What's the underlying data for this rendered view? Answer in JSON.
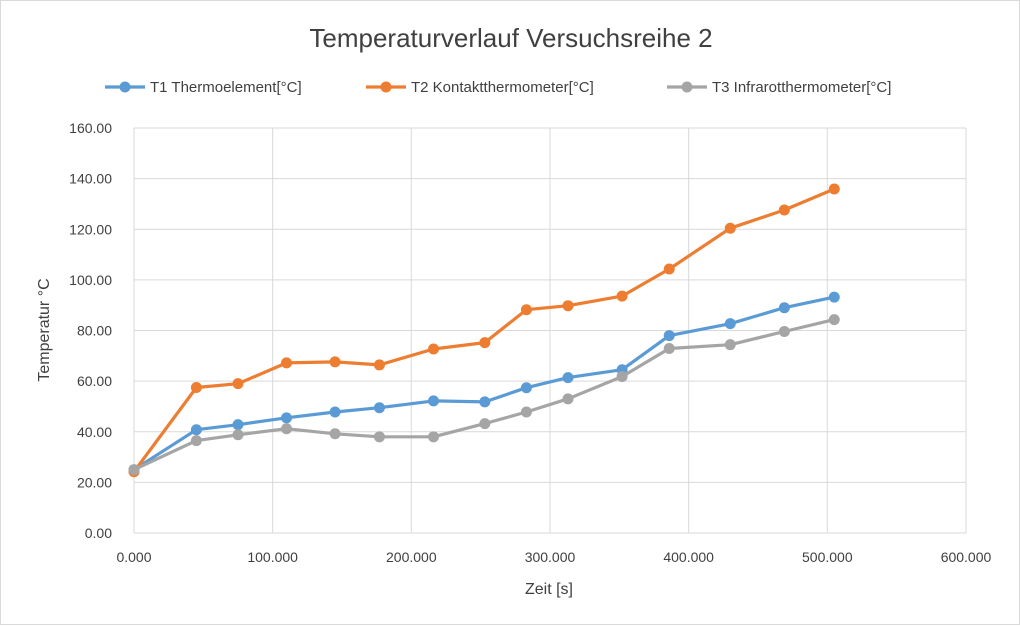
{
  "chart_data": {
    "type": "line",
    "title": "Temperaturverlauf Versuchsreihe 2",
    "xlabel": "Zeit [s]",
    "ylabel": "Temperatur °C",
    "xlim": [
      0,
      600
    ],
    "ylim": [
      0,
      160
    ],
    "x_ticks": [
      "0.000",
      "100.000",
      "200.000",
      "300.000",
      "400.000",
      "500.000",
      "600.000"
    ],
    "y_ticks": [
      "0.00",
      "20.00",
      "40.00",
      "60.00",
      "80.00",
      "100.00",
      "120.00",
      "140.00",
      "160.00"
    ],
    "grid": true,
    "legend_position": "top",
    "x": [
      0,
      45,
      75,
      110,
      145,
      177,
      216,
      253,
      283,
      313,
      352,
      386,
      430,
      469,
      505
    ],
    "series": [
      {
        "name": "T1 Thermoelement[°C]",
        "color": "#5b9bd5",
        "values": [
          25.0,
          40.8,
          42.8,
          45.5,
          47.8,
          49.5,
          52.2,
          51.8,
          57.4,
          61.4,
          64.5,
          78.0,
          82.7,
          89.0,
          93.2
        ]
      },
      {
        "name": "T2 Kontaktthermometer[°C]",
        "color": "#ed7d31",
        "values": [
          24.2,
          57.5,
          59.0,
          67.2,
          67.6,
          66.4,
          72.7,
          75.2,
          88.2,
          89.8,
          93.6,
          104.3,
          120.4,
          127.6,
          135.9
        ]
      },
      {
        "name": "T3 Infrarotthermometer[°C]",
        "color": "#a5a5a5",
        "values": [
          25.0,
          36.5,
          38.8,
          41.2,
          39.2,
          38.0,
          38.0,
          43.2,
          47.8,
          53.0,
          61.8,
          72.9,
          74.4,
          79.6,
          84.3
        ]
      }
    ]
  }
}
